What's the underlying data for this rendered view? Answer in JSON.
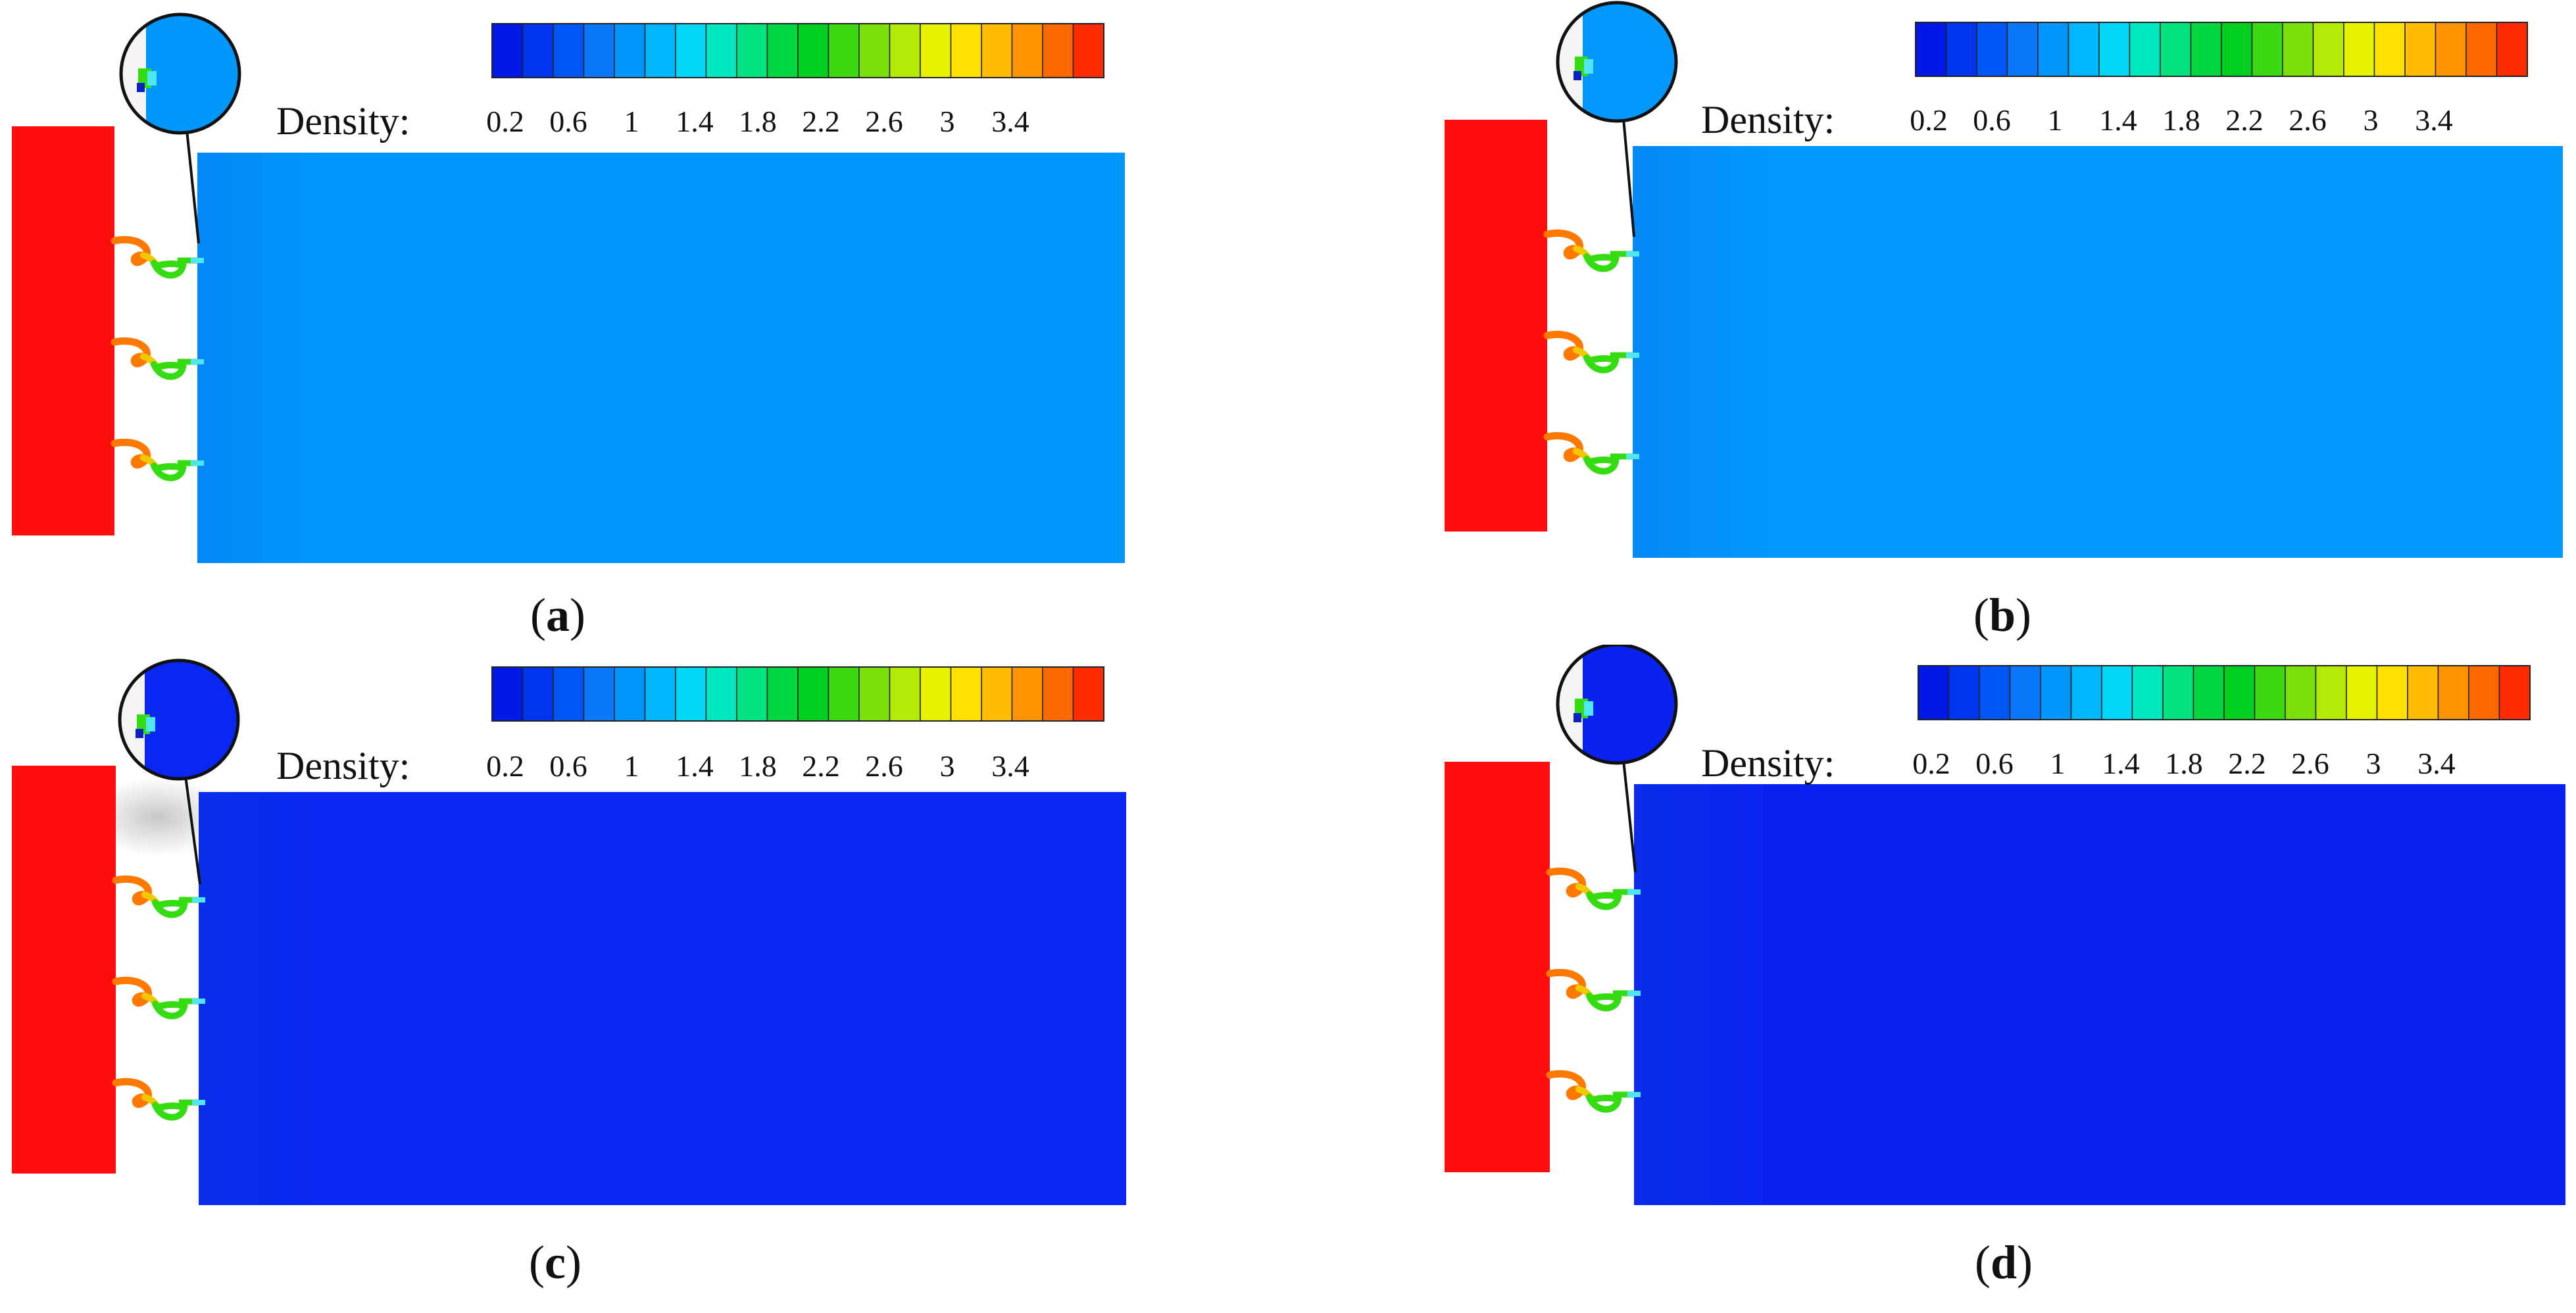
{
  "legend": {
    "label": "Density:",
    "ticks": [
      "0.2",
      "0.6",
      "1",
      "1.4",
      "1.8",
      "2.2",
      "2.6",
      "3",
      "3.4"
    ],
    "colors": [
      "#0019e6",
      "#0035f0",
      "#0055f5",
      "#0a78fb",
      "#0096fa",
      "#00b7ff",
      "#00d6f5",
      "#00e8c0",
      "#00e380",
      "#00d640",
      "#00cf20",
      "#3cd912",
      "#7be00a",
      "#b3ea06",
      "#e6f200",
      "#ffe000",
      "#ffbc00",
      "#ff9400",
      "#ff6a00",
      "#ff2c00"
    ]
  },
  "panels": [
    {
      "letter": "a",
      "field_color": "#0097fb"
    },
    {
      "letter": "b",
      "field_color": "#0297fb"
    },
    {
      "letter": "c",
      "field_color": "#0a26f2"
    },
    {
      "letter": "d",
      "field_color": "#0a22f0"
    }
  ],
  "colors": {
    "chamber": "#fe0d0d",
    "nozzle_hot": "#ff7800",
    "nozzle_mid": "#f2c800",
    "nozzle_cool": "#36dc12",
    "jet": "#4ee6f0"
  }
}
